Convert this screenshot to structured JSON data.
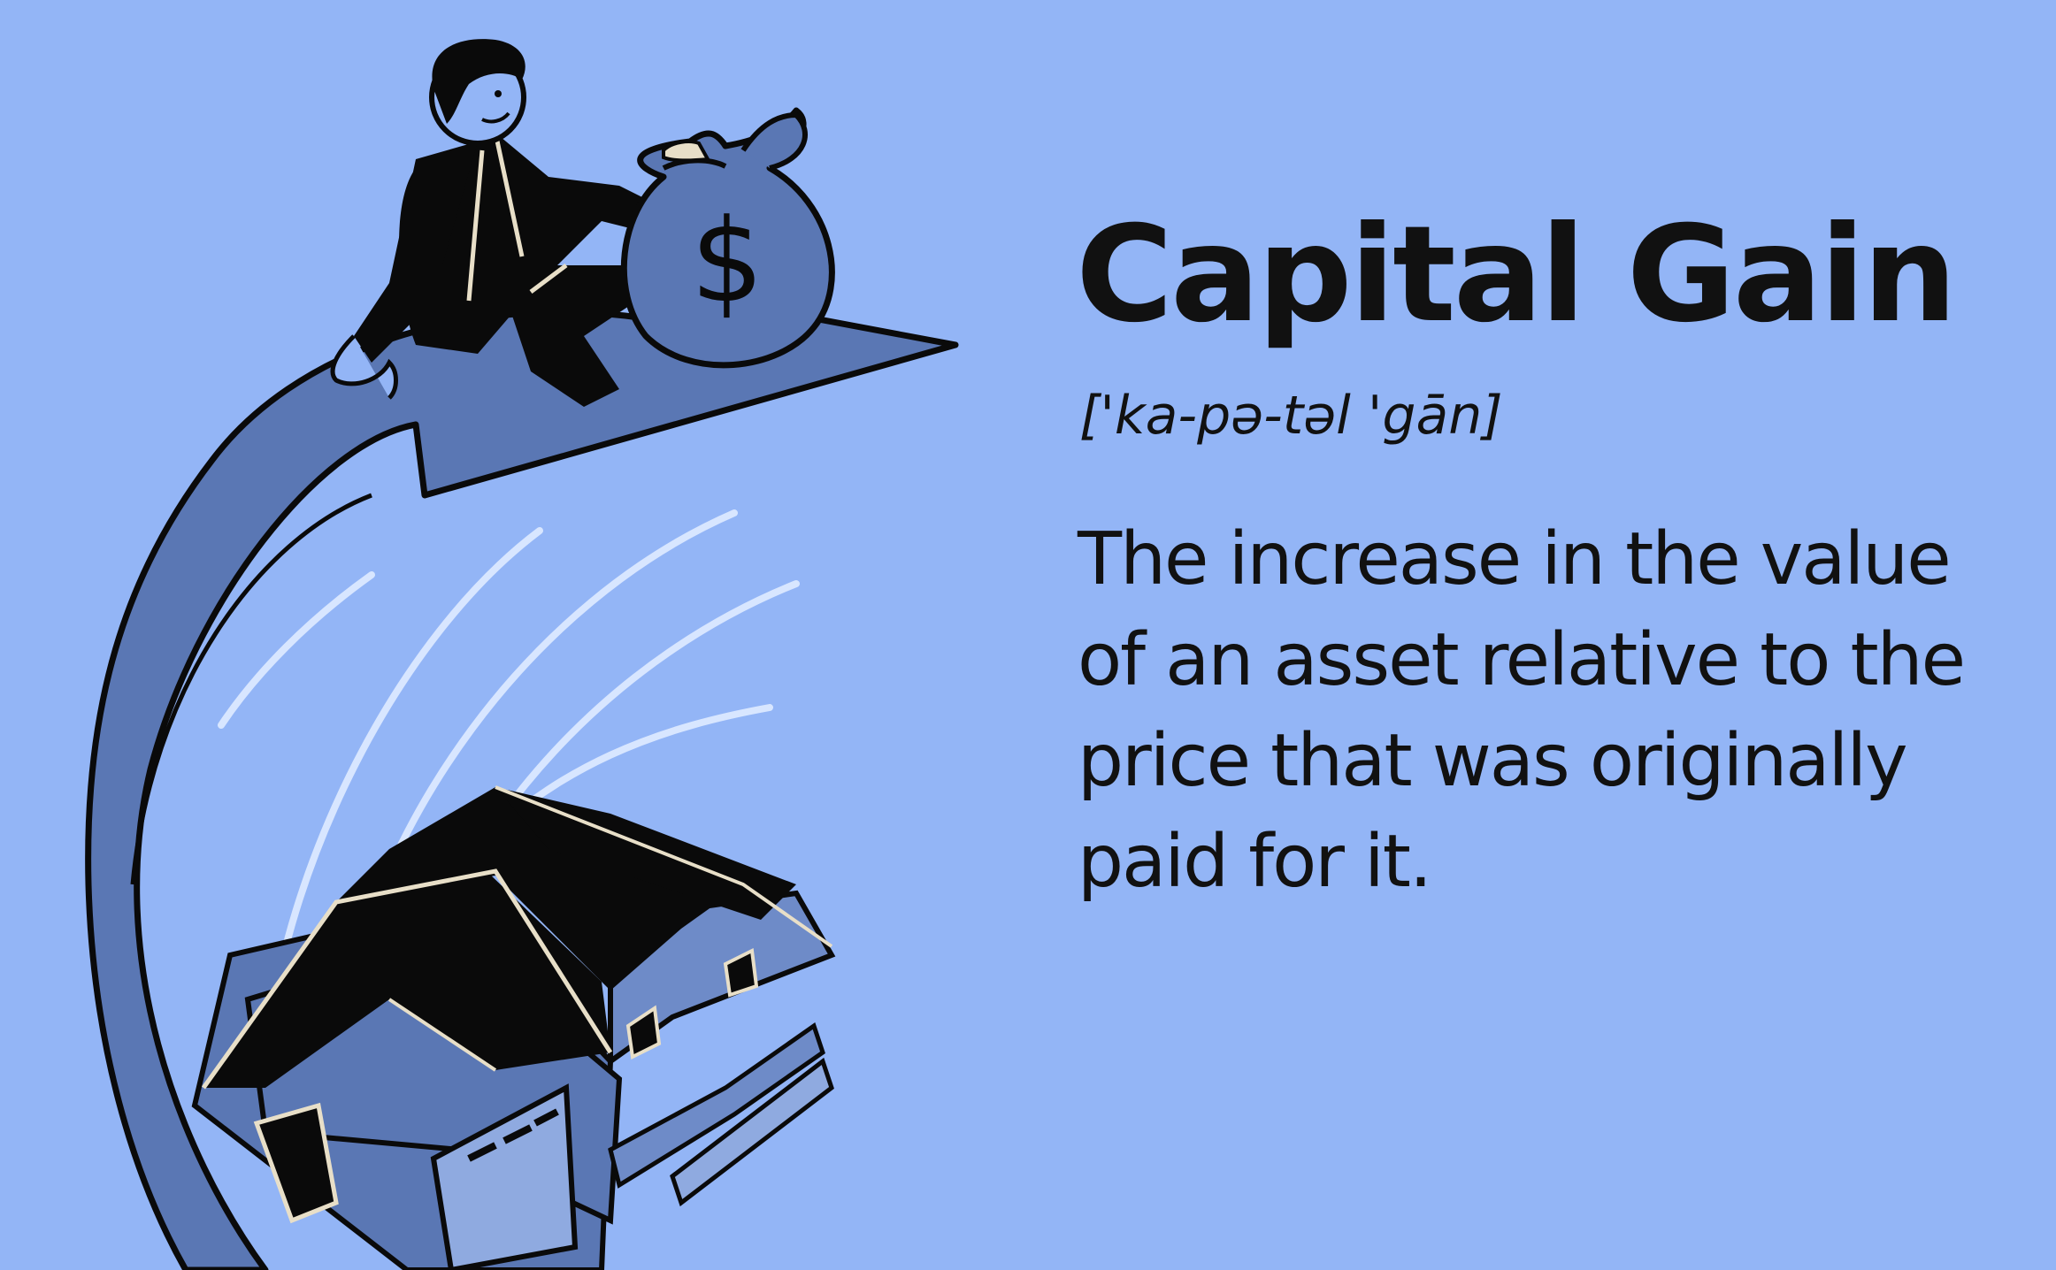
{
  "colors": {
    "background": "#93B5F6",
    "ink": "#111111",
    "house_wall": "#5A77B4",
    "house_wall_light": "#6E8BC8",
    "roof": "#0A0A0A",
    "motion_lines": "#D8E6FF",
    "trim": "#E8DFC8"
  },
  "illustration": {
    "icons": [
      "businessman-icon",
      "money-bag-icon",
      "dollar-sign-icon",
      "upward-arrow-icon",
      "house-icon",
      "garage-icon",
      "motion-lines-icon"
    ],
    "money_bag_symbol": "$"
  },
  "definition_card": {
    "term": "Capital Gain",
    "pronunciation": "['ka-pə-təl 'gān]",
    "definition": "The increase in the value of an asset relative to the price that was originally paid for it."
  }
}
